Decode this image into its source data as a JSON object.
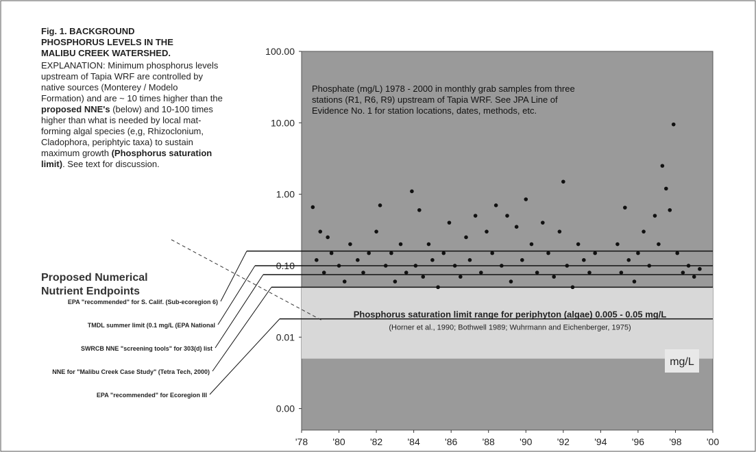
{
  "chart_data": {
    "type": "scatter",
    "title": "Fig. 1.   BACKGROUND PHOSPHORUS LEVELS IN THE MALIBU CREEK WATERSHED.",
    "explanation": [
      "EXPLANATION:  Minimum phosphorus levels upstream of Tapia WRF are controlled by native sources (Monterey / Modelo Formation) and are ~ 10 times higher than the ",
      "proposed NNE's",
      " (below) and 10-100 times higher than what is needed by local mat-forming algal species (e,g, Rhizoclonium, Cladophora, periphtyic taxa) to sustain maximum growth ",
      "(Phosphorus saturation limit)",
      ". See text for discussion."
    ],
    "endpoints_title": "Proposed Numerical Nutrient Endpoints",
    "annotation": "Phosphate (mg/L) 1978 - 2000 in monthly grab samples from three stations (R1, R6, R9) upstream of Tapia WRF. See JPA Line of Evidence No. 1 for station locations, dates, methods, etc.",
    "saturation_label": "Phosphorus saturation limit range for periphyton (algae) 0.005 - 0.05 mg/L",
    "saturation_source": "(Horner et al., 1990; Bothwell 1989; Wuhrmann and Eichenberger, 1975)",
    "saturation_range": [
      0.005,
      0.05
    ],
    "unit_label": "mg/L",
    "endpoints": [
      {
        "label": "EPA \"recommended\" for  S. Calif. (Sub-ecoregion 6)",
        "value": 0.16
      },
      {
        "label": "TMDL summer limit (0.1 mg/L (EPA National",
        "value": 0.1
      },
      {
        "label": "SWRCB NNE \"screening tools\" for 303(d) list",
        "value": 0.075
      },
      {
        "label": "NNE for \"Malibu Creek Case Study\" (Tetra Tech, 2000)",
        "value": 0.05
      },
      {
        "label": "EPA \"recommended\" for  Ecoregion III",
        "value": 0.018
      }
    ],
    "log_y": true,
    "color": "#111111",
    "xlim": [
      1978,
      2000
    ],
    "xticks": [
      {
        "value": 1978,
        "label": "'78"
      },
      {
        "value": 1980,
        "label": "'80"
      },
      {
        "value": 1982,
        "label": "'82"
      },
      {
        "value": 1984,
        "label": "'84"
      },
      {
        "value": 1986,
        "label": "'86"
      },
      {
        "value": 1988,
        "label": "'88"
      },
      {
        "value": 1990,
        "label": "'90"
      },
      {
        "value": 1992,
        "label": "'92"
      },
      {
        "value": 1994,
        "label": "'94"
      },
      {
        "value": 1996,
        "label": "'96"
      },
      {
        "value": 1998,
        "label": "'98"
      },
      {
        "value": 2000,
        "label": "'00"
      }
    ],
    "ylim": [
      0.0005,
      100
    ],
    "yticks": [
      {
        "value": 100,
        "label": "100.00"
      },
      {
        "value": 10,
        "label": "10.00"
      },
      {
        "value": 1,
        "label": "1.00"
      },
      {
        "value": 0.1,
        "label": "0.10"
      },
      {
        "value": 0.01,
        "label": "0.01"
      },
      {
        "value": 0.001,
        "label": "0.00"
      }
    ],
    "x": [
      1978.6,
      1978.8,
      1979.0,
      1979.2,
      1979.4,
      1979.6,
      1980.0,
      1980.3,
      1980.6,
      1981.0,
      1981.3,
      1981.6,
      1982.0,
      1982.2,
      1982.5,
      1982.8,
      1983.0,
      1983.3,
      1983.6,
      1983.9,
      1984.1,
      1984.3,
      1984.5,
      1984.8,
      1985.0,
      1985.3,
      1985.6,
      1985.9,
      1986.2,
      1986.5,
      1986.8,
      1987.0,
      1987.3,
      1987.6,
      1987.9,
      1988.2,
      1988.4,
      1988.7,
      1989.0,
      1989.2,
      1989.5,
      1989.8,
      1990.0,
      1990.3,
      1990.6,
      1990.9,
      1991.2,
      1991.5,
      1991.8,
      1992.0,
      1992.2,
      1992.5,
      1992.8,
      1993.1,
      1993.4,
      1993.7,
      1994.9,
      1995.1,
      1995.3,
      1995.5,
      1995.8,
      1996.0,
      1996.3,
      1996.6,
      1996.9,
      1997.1,
      1997.3,
      1997.5,
      1997.7,
      1997.9,
      1998.1,
      1998.4,
      1998.7,
      1999.0,
      1999.3
    ],
    "y": [
      0.66,
      0.12,
      0.3,
      0.08,
      0.25,
      0.15,
      0.1,
      0.06,
      0.2,
      0.12,
      0.08,
      0.15,
      0.3,
      0.7,
      0.1,
      0.15,
      0.06,
      0.2,
      0.08,
      1.1,
      0.1,
      0.6,
      0.07,
      0.2,
      0.12,
      0.05,
      0.15,
      0.4,
      0.1,
      0.07,
      0.25,
      0.12,
      0.5,
      0.08,
      0.3,
      0.15,
      0.7,
      0.1,
      0.5,
      0.06,
      0.35,
      0.12,
      0.85,
      0.2,
      0.08,
      0.4,
      0.15,
      0.07,
      0.3,
      1.5,
      0.1,
      0.05,
      0.2,
      0.12,
      0.08,
      0.15,
      0.2,
      0.08,
      0.65,
      0.12,
      0.06,
      0.15,
      0.3,
      0.1,
      0.5,
      0.2,
      2.5,
      1.2,
      0.6,
      9.5,
      0.15,
      0.08,
      0.1,
      0.07,
      0.09
    ]
  }
}
